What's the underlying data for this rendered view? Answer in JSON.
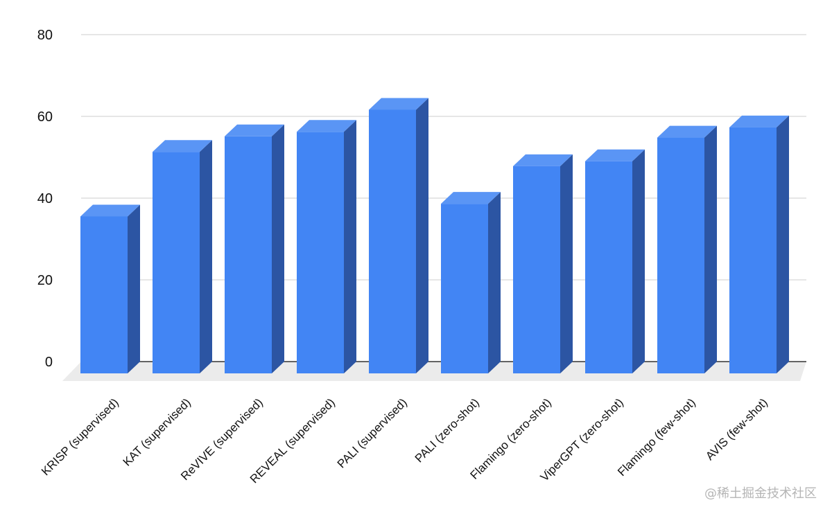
{
  "chart_data": {
    "type": "bar",
    "style": "3d",
    "categories": [
      "KRISP (supervised)",
      "KAT (supervised)",
      "ReVIVE (supervised)",
      "REVEAL (supervised)",
      "PALI (supervised)",
      "PALI (zero-shot)",
      "Flamingo (zero-shot)",
      "ViperGPT (zero-shot)",
      "Flamingo (few-shot)",
      "AVIS (few-shot)"
    ],
    "series": [
      {
        "values": [
          38.4,
          54.2,
          58.0,
          59.1,
          64.5,
          41.5,
          50.7,
          51.9,
          57.7,
          60.2
        ]
      }
    ],
    "yticks": [
      0,
      20,
      40,
      60,
      80
    ],
    "ylim": [
      0,
      80
    ],
    "grid": true,
    "legend": "none",
    "colors": {
      "front": "#4285f4",
      "side": "#2c55a3",
      "top": "#5a95f5",
      "floor": "#ebebeb",
      "grid": "#cccccc"
    }
  },
  "watermark": "@稀土掘金技术社区"
}
